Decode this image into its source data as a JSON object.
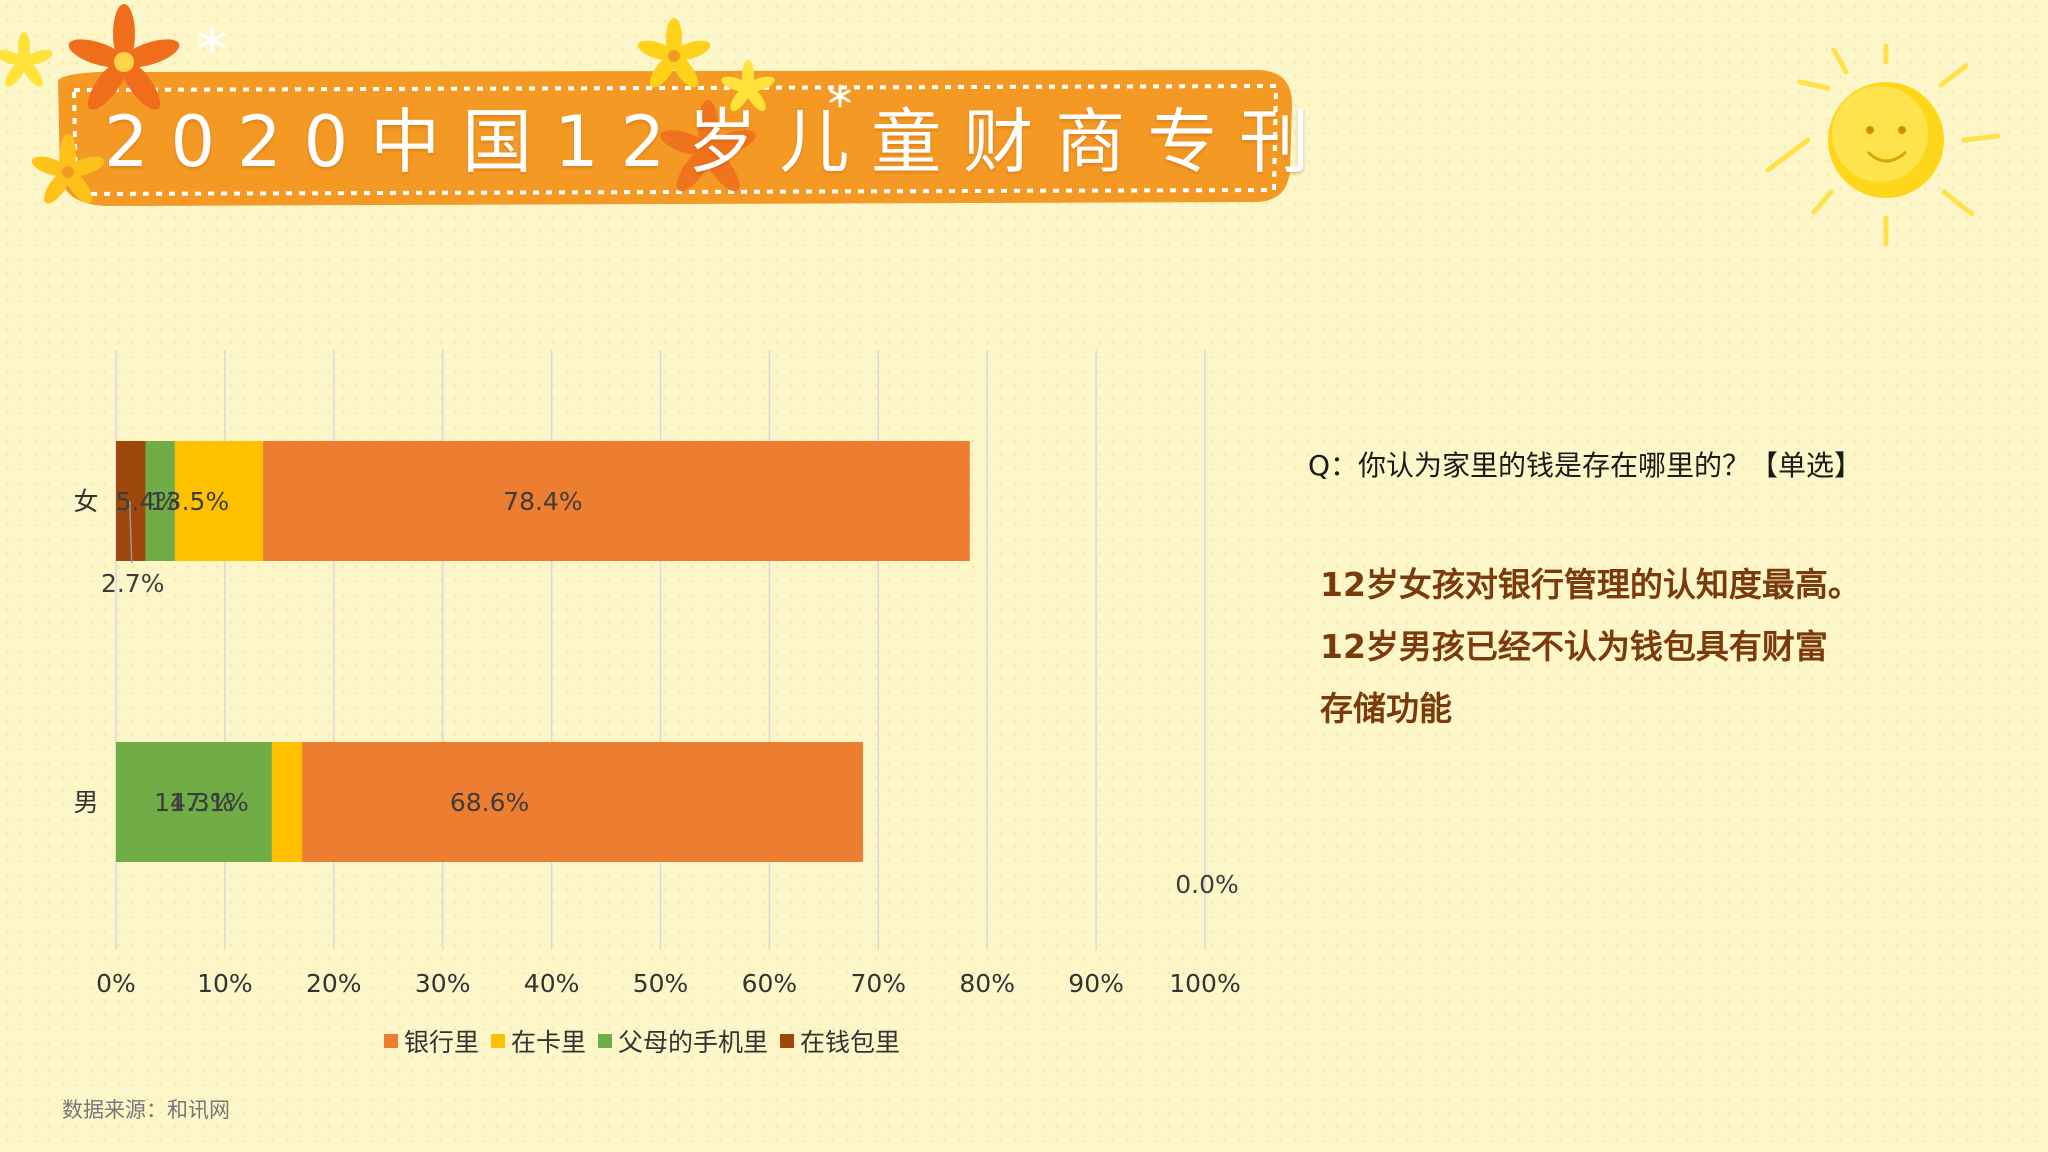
{
  "banner": {
    "title": "2020中国12岁儿童财商专刊"
  },
  "question": "Q：你认为家里的钱是存在哪里的？【单选】",
  "findings": [
    "12岁女孩对银行管理的认知度最高。",
    "12岁男孩已经不认为钱包具有财富",
    "存储功能"
  ],
  "source": "数据来源：和讯网",
  "colors": {
    "banner": "#f49a24",
    "background": "#fdf6c8",
    "findings_text": "#7a3a0c"
  },
  "chart_data": {
    "type": "bar",
    "orientation": "horizontal",
    "stacked": "percent",
    "categories": [
      "女",
      "男"
    ],
    "series": [
      {
        "name": "银行里",
        "color": "#ed7d31",
        "values": [
          78.4,
          68.6
        ],
        "labels": [
          "78.4%",
          "68.6%"
        ]
      },
      {
        "name": "在卡里",
        "color": "#ffc000",
        "values": [
          13.5,
          17.1
        ],
        "labels": [
          "13.5%",
          "17.1%"
        ]
      },
      {
        "name": "父母的手机里",
        "color": "#70ad47",
        "values": [
          5.4,
          14.3
        ],
        "labels": [
          "5.4%",
          "14.3%"
        ]
      },
      {
        "name": "在钱包里",
        "color": "#9e480e",
        "values": [
          2.7,
          0.0
        ],
        "labels": [
          "2.7%",
          "0.0%"
        ]
      }
    ],
    "xlim": [
      0,
      100
    ],
    "xticks": [
      "0%",
      "10%",
      "20%",
      "30%",
      "40%",
      "50%",
      "60%",
      "70%",
      "80%",
      "90%",
      "100%"
    ],
    "grid": true,
    "legend_position": "bottom"
  }
}
